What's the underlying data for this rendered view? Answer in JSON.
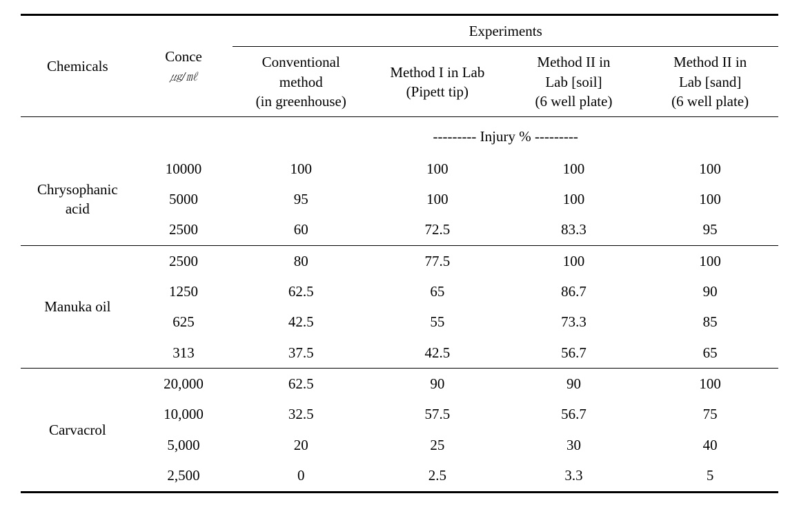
{
  "header": {
    "chemicals": "Chemicals",
    "conc_label": "Conce",
    "conc_unit": "㎍/㎖",
    "experiments": "Experiments",
    "col_conv_1": "Conventional",
    "col_conv_2": "method",
    "col_conv_3": "(in greenhouse)",
    "col_m1_1": "Method I in Lab",
    "col_m1_2": "(Pipett tip)",
    "col_m2soil_1": "Method II in",
    "col_m2soil_2": "Lab [soil]",
    "col_m2soil_3": "(6 well plate)",
    "col_m2sand_1": "Method II in",
    "col_m2sand_2": "Lab [sand]",
    "col_m2sand_3": "(6 well plate)",
    "injury_sep": "--------- Injury % ---------"
  },
  "groups": [
    {
      "name_line1": "Chrysophanic",
      "name_line2": "acid",
      "rows": [
        {
          "conc": "10000",
          "v": [
            "100",
            "100",
            "100",
            "100"
          ]
        },
        {
          "conc": "5000",
          "v": [
            "95",
            "100",
            "100",
            "100"
          ]
        },
        {
          "conc": "2500",
          "v": [
            "60",
            "72.5",
            "83.3",
            "95"
          ]
        }
      ]
    },
    {
      "name_line1": "Manuka oil",
      "name_line2": "",
      "rows": [
        {
          "conc": "2500",
          "v": [
            "80",
            "77.5",
            "100",
            "100"
          ]
        },
        {
          "conc": "1250",
          "v": [
            "62.5",
            "65",
            "86.7",
            "90"
          ]
        },
        {
          "conc": "625",
          "v": [
            "42.5",
            "55",
            "73.3",
            "85"
          ]
        },
        {
          "conc": "313",
          "v": [
            "37.5",
            "42.5",
            "56.7",
            "65"
          ]
        }
      ]
    },
    {
      "name_line1": "Carvacrol",
      "name_line2": "",
      "rows": [
        {
          "conc": "20,000",
          "v": [
            "62.5",
            "90",
            "90",
            "100"
          ]
        },
        {
          "conc": "10,000",
          "v": [
            "32.5",
            "57.5",
            "56.7",
            "75"
          ]
        },
        {
          "conc": "5,000",
          "v": [
            "20",
            "25",
            "30",
            "40"
          ]
        },
        {
          "conc": "2,500",
          "v": [
            "0",
            "2.5",
            "3.3",
            "5"
          ]
        }
      ]
    }
  ]
}
